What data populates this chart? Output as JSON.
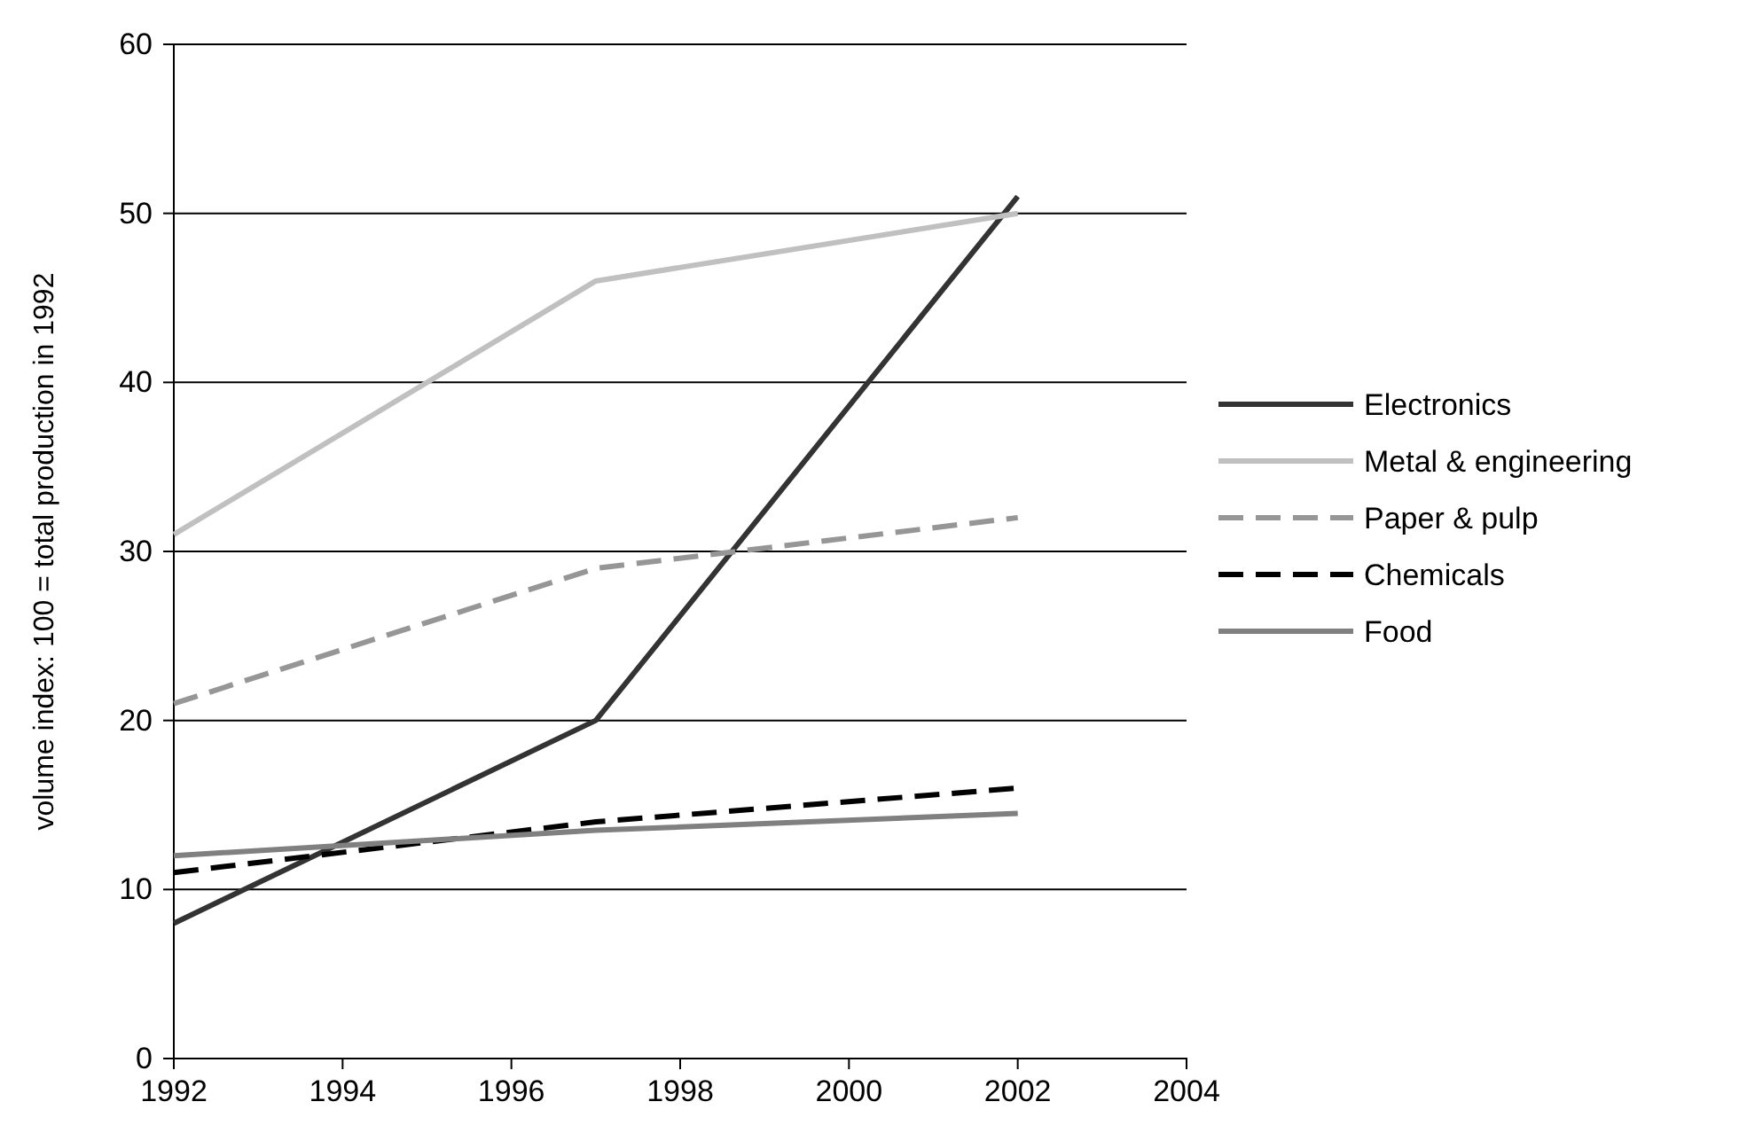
{
  "chart_data": {
    "type": "line",
    "ylabel": "volume index: 100 = total production in 1992",
    "x": [
      1992,
      1997,
      2002
    ],
    "series": [
      {
        "name": "Electronics",
        "color": "#333333",
        "line_style": "solid",
        "values": [
          8,
          20,
          51
        ]
      },
      {
        "name": "Metal & engineering",
        "color": "#c0c0c0",
        "line_style": "solid",
        "values": [
          31,
          46,
          50
        ]
      },
      {
        "name": "Paper & pulp",
        "color": "#969696",
        "line_style": "dashed",
        "values": [
          21,
          29,
          32
        ]
      },
      {
        "name": "Chemicals",
        "color": "#000000",
        "line_style": "dashed",
        "values": [
          11,
          14,
          16
        ]
      },
      {
        "name": "Food",
        "color": "#808080",
        "line_style": "solid",
        "values": [
          12,
          13.5,
          14.5
        ]
      }
    ],
    "xlim": [
      1992,
      2004
    ],
    "xticks": [
      1992,
      1994,
      1996,
      1998,
      2000,
      2002,
      2004
    ],
    "ylim": [
      0,
      60
    ],
    "yticks": [
      0,
      10,
      20,
      30,
      40,
      50,
      60
    ],
    "grid": "y",
    "legend": "right",
    "marker": "none"
  }
}
